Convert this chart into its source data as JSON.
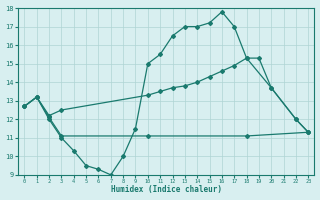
{
  "line1_x": [
    0,
    1,
    2,
    3,
    4,
    5,
    6,
    7,
    8,
    9,
    10,
    11,
    12,
    13,
    14,
    15,
    16,
    17,
    18,
    20,
    22,
    23
  ],
  "line1_y": [
    12.7,
    13.2,
    12.0,
    11.0,
    10.3,
    9.5,
    9.3,
    9.0,
    10.0,
    11.5,
    15.0,
    15.5,
    16.5,
    17.0,
    17.0,
    17.2,
    17.8,
    17.0,
    15.3,
    13.7,
    12.0,
    11.3
  ],
  "line2_x": [
    0,
    1,
    2,
    3,
    10,
    11,
    12,
    13,
    14,
    15,
    16,
    17,
    18,
    19,
    20,
    22,
    23
  ],
  "line2_y": [
    12.7,
    13.2,
    12.2,
    12.5,
    13.3,
    13.5,
    13.7,
    13.8,
    14.0,
    14.3,
    14.6,
    14.9,
    15.3,
    15.3,
    13.7,
    12.0,
    11.3
  ],
  "line3_x": [
    0,
    1,
    2,
    3,
    10,
    18,
    23
  ],
  "line3_y": [
    12.7,
    13.2,
    12.1,
    11.1,
    11.1,
    11.1,
    11.3
  ],
  "line_color": "#1a7a6e",
  "bg_color": "#d8eff0",
  "grid_color": "#afd4d4",
  "xlabel": "Humidex (Indice chaleur)",
  "ylim": [
    9,
    18
  ],
  "xlim": [
    -0.5,
    23.5
  ],
  "yticks": [
    9,
    10,
    11,
    12,
    13,
    14,
    15,
    16,
    17,
    18
  ],
  "xticks": [
    0,
    1,
    2,
    3,
    4,
    5,
    6,
    7,
    8,
    9,
    10,
    11,
    12,
    13,
    14,
    15,
    16,
    17,
    18,
    19,
    20,
    21,
    22,
    23
  ]
}
